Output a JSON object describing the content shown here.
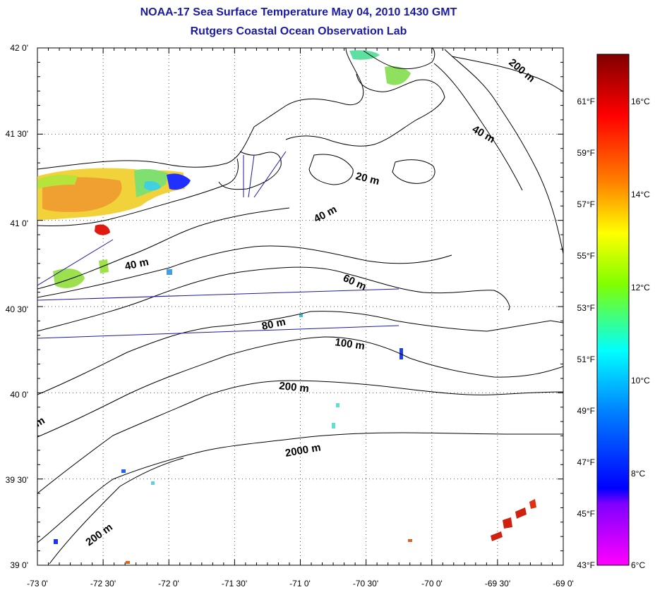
{
  "title": "NOAA-17 Sea Surface Temperature May 04, 2010 1430 GMT",
  "subtitle": "Rutgers Coastal Ocean Observation Lab",
  "latitude_labels": [
    "42 0'",
    "41 30'",
    "41 0'",
    "40 30'",
    "40 0'",
    "39 30'",
    "39 0'"
  ],
  "longitude_labels": [
    "-73 0'",
    "-72 30'",
    "-72 0'",
    "-71 30'",
    "-71 0'",
    "-70 30'",
    "-70 0'",
    "-69 30'",
    "-69 0'"
  ],
  "contour_labels": [
    "200 m",
    "40 m",
    "20 m",
    "40 m",
    "40 m",
    "60 m",
    "80 m",
    "100 m",
    "200 m",
    "2000 m",
    "200 m",
    "m"
  ],
  "colorbar": {
    "fahrenheit_labels": [
      "61°F",
      "59°F",
      "57°F",
      "55°F",
      "53°F",
      "51°F",
      "49°F",
      "47°F",
      "45°F",
      "43°F"
    ],
    "celsius_labels": [
      "16°C",
      "14°C",
      "12°C",
      "10°C",
      "8°C",
      "6°C"
    ],
    "colors": [
      "#800000",
      "#ff0000",
      "#ff8000",
      "#ffff00",
      "#80ff00",
      "#00ffff",
      "#0080ff",
      "#0000ff",
      "#8000ff",
      "#ff00ff"
    ]
  },
  "colors": {
    "title": "#1a1aa6",
    "coast": "#000000",
    "transect": "#1a1aa6",
    "grid": "#555555"
  }
}
